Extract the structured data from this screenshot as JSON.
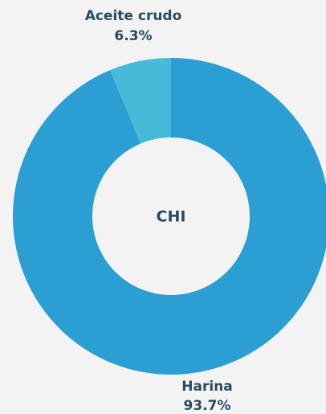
{
  "chart_data": {
    "type": "pie",
    "center_label": "CHI",
    "categories": [
      "Harina",
      "Aceite crudo"
    ],
    "values": [
      93.7,
      6.3
    ],
    "value_labels": [
      "93.7%",
      "6.3%"
    ],
    "colors": [
      "#2b9fd4",
      "#47b9d9"
    ]
  }
}
